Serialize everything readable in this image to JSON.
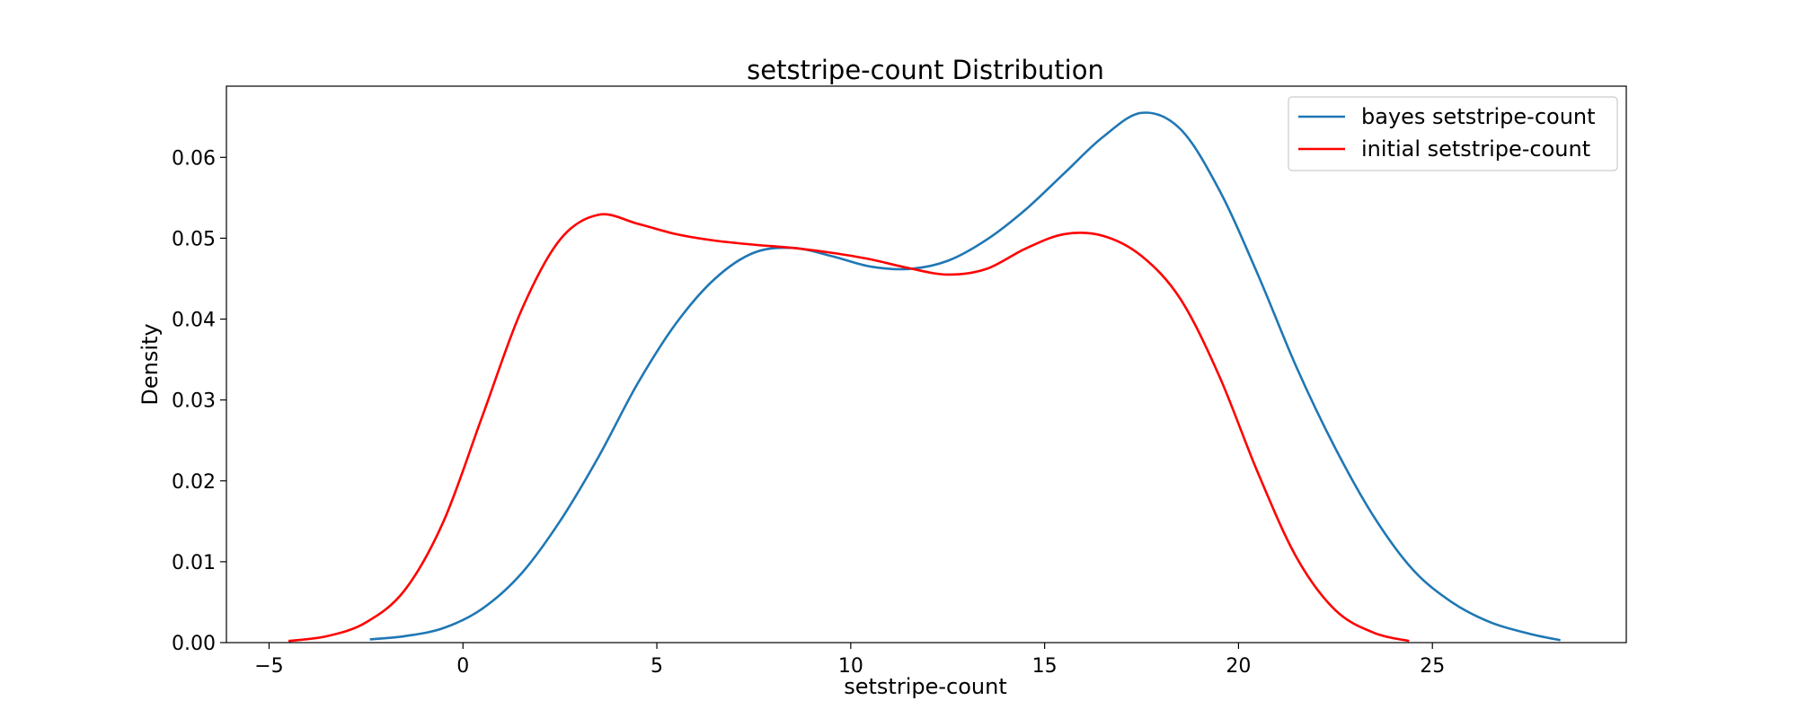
{
  "chart_data": {
    "type": "line",
    "title": "setstripe-count Distribution",
    "xlabel": "setstripe-count",
    "ylabel": "Density",
    "xlim": [
      -6.1,
      30.0
    ],
    "ylim": [
      0.0,
      0.0688
    ],
    "x_ticks": [
      -5,
      0,
      5,
      10,
      15,
      20,
      25
    ],
    "x_tick_labels": [
      "−5",
      "0",
      "5",
      "10",
      "15",
      "20",
      "25"
    ],
    "y_ticks": [
      0.0,
      0.01,
      0.02,
      0.03,
      0.04,
      0.05,
      0.06
    ],
    "y_tick_labels": [
      "0.00",
      "0.01",
      "0.02",
      "0.03",
      "0.04",
      "0.05",
      "0.06"
    ],
    "grid": false,
    "legend_position": "top-right",
    "series": [
      {
        "name": "bayes setstripe-count",
        "color": "#1f77b4",
        "points": [
          [
            -2.4,
            0.0004
          ],
          [
            -1.5,
            0.0008
          ],
          [
            -0.5,
            0.0018
          ],
          [
            0.5,
            0.0042
          ],
          [
            1.5,
            0.0085
          ],
          [
            2.5,
            0.015
          ],
          [
            3.5,
            0.023
          ],
          [
            4.5,
            0.032
          ],
          [
            5.5,
            0.0395
          ],
          [
            6.5,
            0.045
          ],
          [
            7.5,
            0.0482
          ],
          [
            8.5,
            0.0488
          ],
          [
            9.5,
            0.0478
          ],
          [
            10.5,
            0.0465
          ],
          [
            11.5,
            0.0462
          ],
          [
            12.5,
            0.0472
          ],
          [
            13.5,
            0.0498
          ],
          [
            14.5,
            0.0535
          ],
          [
            15.5,
            0.058
          ],
          [
            16.5,
            0.0625
          ],
          [
            17.5,
            0.0655
          ],
          [
            18.5,
            0.0635
          ],
          [
            19.5,
            0.056
          ],
          [
            20.5,
            0.0455
          ],
          [
            21.5,
            0.034
          ],
          [
            22.5,
            0.024
          ],
          [
            23.5,
            0.0155
          ],
          [
            24.5,
            0.009
          ],
          [
            25.5,
            0.005
          ],
          [
            26.5,
            0.0025
          ],
          [
            27.5,
            0.0011
          ],
          [
            28.3,
            0.0003
          ]
        ]
      },
      {
        "name": "initial setstripe-count",
        "color": "#ff0000",
        "points": [
          [
            -4.5,
            0.0002
          ],
          [
            -3.5,
            0.0008
          ],
          [
            -2.5,
            0.0025
          ],
          [
            -1.5,
            0.0065
          ],
          [
            -0.5,
            0.015
          ],
          [
            0.5,
            0.028
          ],
          [
            1.5,
            0.041
          ],
          [
            2.5,
            0.0498
          ],
          [
            3.5,
            0.0529
          ],
          [
            4.5,
            0.0518
          ],
          [
            5.5,
            0.0505
          ],
          [
            6.5,
            0.0497
          ],
          [
            7.5,
            0.0492
          ],
          [
            8.5,
            0.0488
          ],
          [
            9.5,
            0.0482
          ],
          [
            10.5,
            0.0474
          ],
          [
            11.5,
            0.0463
          ],
          [
            12.5,
            0.0455
          ],
          [
            13.5,
            0.0462
          ],
          [
            14.5,
            0.0487
          ],
          [
            15.5,
            0.0505
          ],
          [
            16.5,
            0.0503
          ],
          [
            17.5,
            0.0478
          ],
          [
            18.5,
            0.0425
          ],
          [
            19.5,
            0.033
          ],
          [
            20.5,
            0.021
          ],
          [
            21.5,
            0.0105
          ],
          [
            22.5,
            0.004
          ],
          [
            23.5,
            0.0012
          ],
          [
            24.4,
            0.0002
          ]
        ]
      }
    ]
  }
}
